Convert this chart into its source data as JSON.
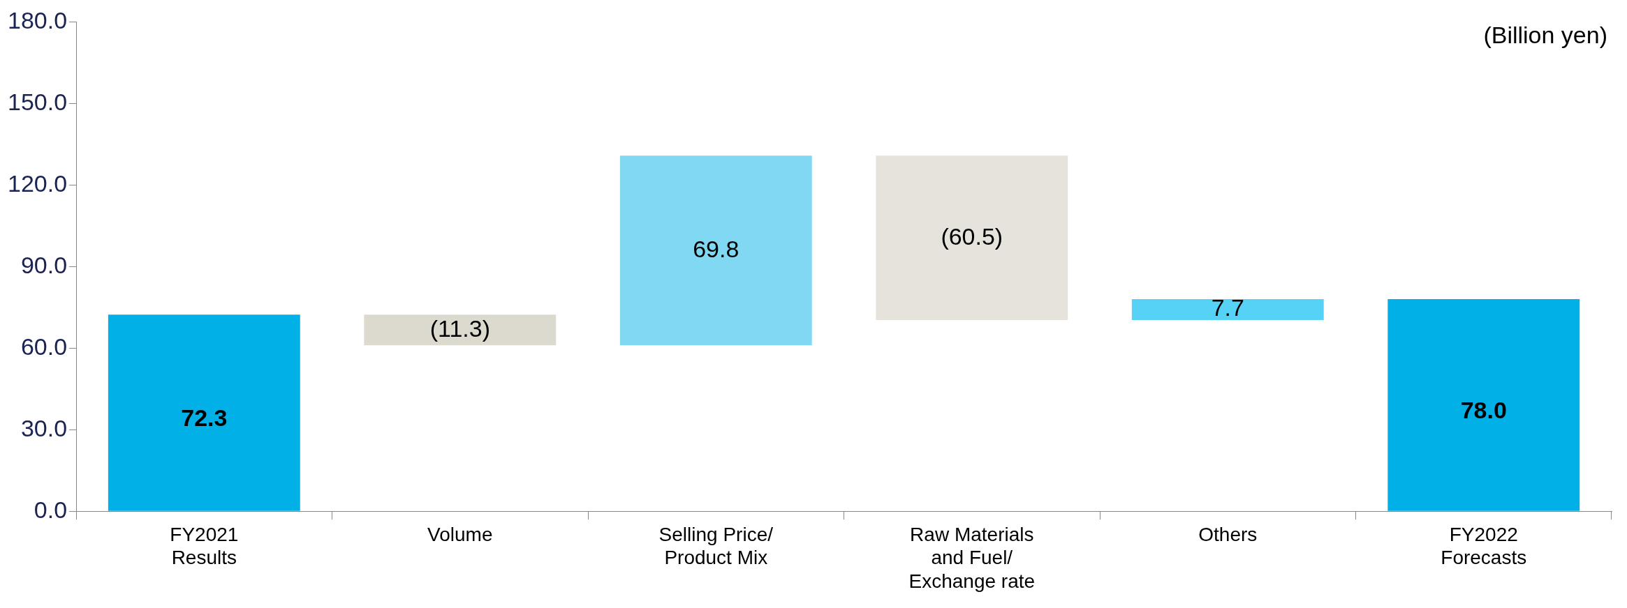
{
  "chart_data": {
    "type": "bar",
    "categories": [
      "FY2021\nResults",
      "Volume",
      "Selling Price/\nProduct Mix",
      "Raw Materials\nand Fuel/\nExchange rate",
      "Others",
      "FY2022\nForecasts"
    ],
    "values": [
      72.3,
      -11.3,
      69.8,
      -60.5,
      7.7,
      78.0
    ],
    "base": [
      0,
      72.3,
      61.0,
      130.8,
      70.3,
      0
    ],
    "colors": [
      "#00b0e6",
      "#dcd9cf",
      "#80d8f2",
      "#e6e3dc",
      "#55d2f5",
      "#00b0e6"
    ],
    "value_labels": [
      "72.3",
      "(11.3)",
      "69.8",
      "(60.5)",
      "7.7",
      "78.0"
    ],
    "ylim": [
      0,
      180
    ],
    "yticks": [
      {
        "value": 0,
        "label": "0.0"
      },
      {
        "value": 30,
        "label": "30.0"
      },
      {
        "value": 60,
        "label": "60.0"
      },
      {
        "value": 90,
        "label": "90.0"
      },
      {
        "value": 120,
        "label": "120.0"
      },
      {
        "value": 150,
        "label": "150.0"
      },
      {
        "value": 180,
        "label": "180.0"
      }
    ],
    "annotations": [
      "(Billion yen)"
    ],
    "grid": false,
    "legend": false
  }
}
